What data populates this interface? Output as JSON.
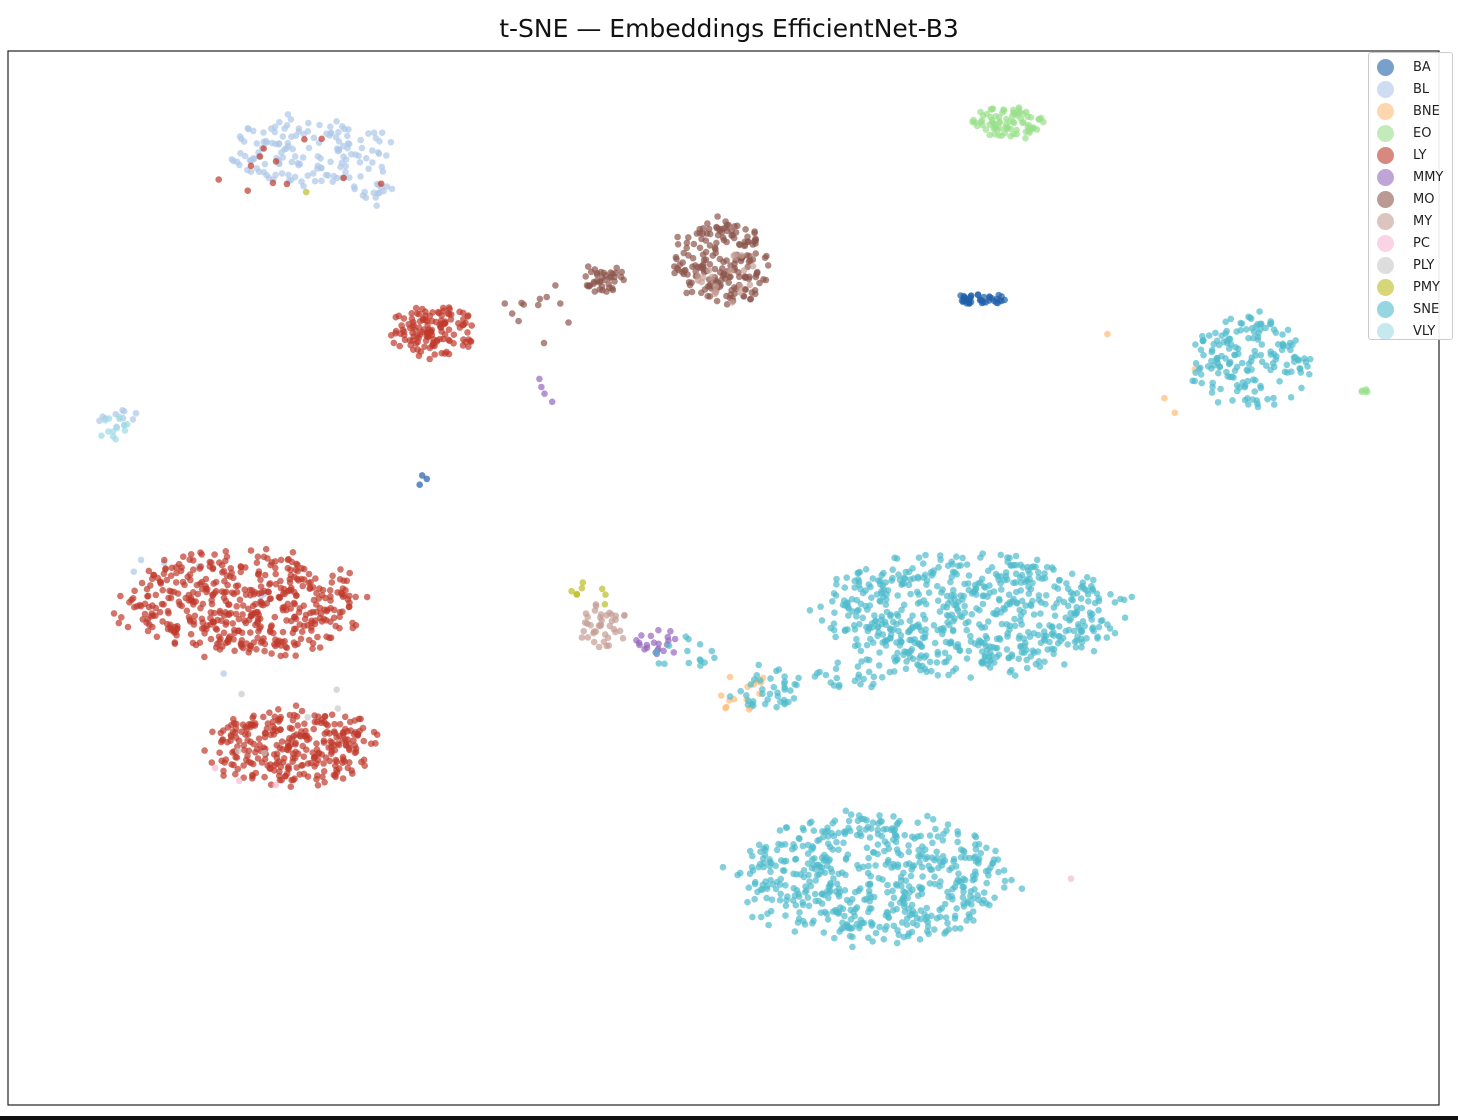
{
  "chart_data": {
    "type": "scatter",
    "title": "t-SNE — Embeddings EfficientNet-B3",
    "xlabel": "",
    "ylabel": "",
    "xlim": [
      -100,
      100
    ],
    "ylim": [
      -100,
      100
    ],
    "grid": false,
    "axis_ticks": false,
    "legend_position": "top-right",
    "marker_alpha": 0.7,
    "series": [
      {
        "name": "BA",
        "color": "#1f5fa8",
        "clusters": [
          {
            "cx": 36.4,
            "cy": 53.0,
            "sx": 2.2,
            "sy": 0.7,
            "n": 40,
            "seed": 11
          },
          {
            "cx": -42.0,
            "cy": 19.0,
            "sx": 1.0,
            "sy": 1.0,
            "n": 3,
            "seed": 12
          }
        ]
      },
      {
        "name": "BL",
        "color": "#aec7e8",
        "clusters": [
          {
            "cx": -57.5,
            "cy": 81.0,
            "sx": 7.0,
            "sy": 4.0,
            "n": 150,
            "seed": 21
          },
          {
            "cx": -49.0,
            "cy": 73.0,
            "sx": 1.8,
            "sy": 1.6,
            "n": 15,
            "seed": 22
          },
          {
            "cx": -84.5,
            "cy": 30.0,
            "sx": 1.5,
            "sy": 1.3,
            "n": 10,
            "seed": 23
          },
          {
            "cx": -72.0,
            "cy": -8.0,
            "sx": 8.0,
            "sy": 8.0,
            "n": 8,
            "seed": 24
          }
        ]
      },
      {
        "name": "BNE",
        "color": "#ffbb78",
        "clusters": [
          {
            "cx": 2.0,
            "cy": -21.0,
            "sx": 2.2,
            "sy": 2.5,
            "n": 15,
            "seed": 31
          },
          {
            "cx": 59.0,
            "cy": 39.0,
            "sx": 5.0,
            "sy": 8.0,
            "n": 4,
            "seed": 32
          }
        ]
      },
      {
        "name": "EO",
        "color": "#98df8a",
        "clusters": [
          {
            "cx": 40.0,
            "cy": 86.5,
            "sx": 3.0,
            "sy": 1.8,
            "n": 80,
            "seed": 41
          },
          {
            "cx": 90.0,
            "cy": 35.5,
            "sx": 0.8,
            "sy": 0.2,
            "n": 5,
            "seed": 42
          }
        ]
      },
      {
        "name": "LY",
        "color": "#c0392b",
        "clusters": [
          {
            "cx": -67.5,
            "cy": -5.0,
            "sx": 9.5,
            "sy": 5.8,
            "n": 480,
            "seed": 51
          },
          {
            "cx": -60.0,
            "cy": -32.0,
            "sx": 7.0,
            "sy": 4.2,
            "n": 300,
            "seed": 52
          },
          {
            "cx": -40.5,
            "cy": 46.5,
            "sx": 3.3,
            "sy": 2.8,
            "n": 130,
            "seed": 53
          },
          {
            "cx": -58.0,
            "cy": 78.0,
            "sx": 8.0,
            "sy": 4.0,
            "n": 12,
            "seed": 54
          }
        ]
      },
      {
        "name": "MMY",
        "color": "#9467bd",
        "clusters": [
          {
            "cx": -9.0,
            "cy": -12.0,
            "sx": 1.8,
            "sy": 1.5,
            "n": 22,
            "seed": 61
          },
          {
            "cx": -25.0,
            "cy": 36.0,
            "sx": 1.5,
            "sy": 1.5,
            "n": 4,
            "seed": 62
          }
        ]
      },
      {
        "name": "MO",
        "color": "#8c564b",
        "clusters": [
          {
            "cx": 0.0,
            "cy": 60.0,
            "sx": 4.0,
            "sy": 4.5,
            "n": 190,
            "seed": 71
          },
          {
            "cx": -17.0,
            "cy": 57.0,
            "sx": 1.8,
            "sy": 1.5,
            "n": 40,
            "seed": 72
          },
          {
            "cx": -25.0,
            "cy": 51.0,
            "sx": 3.0,
            "sy": 3.5,
            "n": 12,
            "seed": 73
          }
        ]
      },
      {
        "name": "MY",
        "color": "#c49c94",
        "clusters": [
          {
            "cx": -17.0,
            "cy": -9.0,
            "sx": 1.8,
            "sy": 3.0,
            "n": 40,
            "seed": 81
          },
          {
            "cx": 1.0,
            "cy": 57.0,
            "sx": 3.0,
            "sy": 3.0,
            "n": 20,
            "seed": 82
          }
        ]
      },
      {
        "name": "PC",
        "color": "#f7b6d2",
        "clusters": [
          {
            "cx": 48.6,
            "cy": -57.0,
            "sx": 0.2,
            "sy": 0.2,
            "n": 1,
            "seed": 91
          },
          {
            "cx": -67.0,
            "cy": -38.0,
            "sx": 3.0,
            "sy": 3.0,
            "n": 3,
            "seed": 92
          }
        ]
      },
      {
        "name": "PLY",
        "color": "#c7c7c7",
        "clusters": [
          {
            "cx": -60.0,
            "cy": -28.0,
            "sx": 6.0,
            "sy": 6.0,
            "n": 6,
            "seed": 101
          }
        ]
      },
      {
        "name": "PMY",
        "color": "#bcbd22",
        "clusters": [
          {
            "cx": -18.5,
            "cy": -3.0,
            "sx": 1.5,
            "sy": 2.0,
            "n": 8,
            "seed": 111
          },
          {
            "cx": -58.0,
            "cy": 73.5,
            "sx": 0.3,
            "sy": 0.3,
            "n": 1,
            "seed": 112
          }
        ]
      },
      {
        "name": "SNE",
        "color": "#4fbbcc",
        "clusters": [
          {
            "cx": 35.0,
            "cy": -7.0,
            "sx": 12.0,
            "sy": 6.5,
            "n": 620,
            "seed": 121
          },
          {
            "cx": 21.0,
            "cy": -57.0,
            "sx": 11.0,
            "sy": 6.8,
            "n": 560,
            "seed": 122
          },
          {
            "cx": 73.5,
            "cy": 41.0,
            "sx": 5.0,
            "sy": 5.0,
            "n": 170,
            "seed": 123
          },
          {
            "cx": 6.0,
            "cy": -21.0,
            "sx": 3.0,
            "sy": 2.5,
            "n": 40,
            "seed": 124
          },
          {
            "cx": 18.0,
            "cy": -18.0,
            "sx": 3.0,
            "sy": 2.0,
            "n": 25,
            "seed": 125
          },
          {
            "cx": -5.0,
            "cy": -14.0,
            "sx": 3.0,
            "sy": 2.0,
            "n": 15,
            "seed": 126
          }
        ]
      },
      {
        "name": "VLY",
        "color": "#9edae5",
        "clusters": [
          {
            "cx": -85.5,
            "cy": 28.5,
            "sx": 2.0,
            "sy": 1.5,
            "n": 14,
            "seed": 131
          }
        ]
      }
    ]
  }
}
